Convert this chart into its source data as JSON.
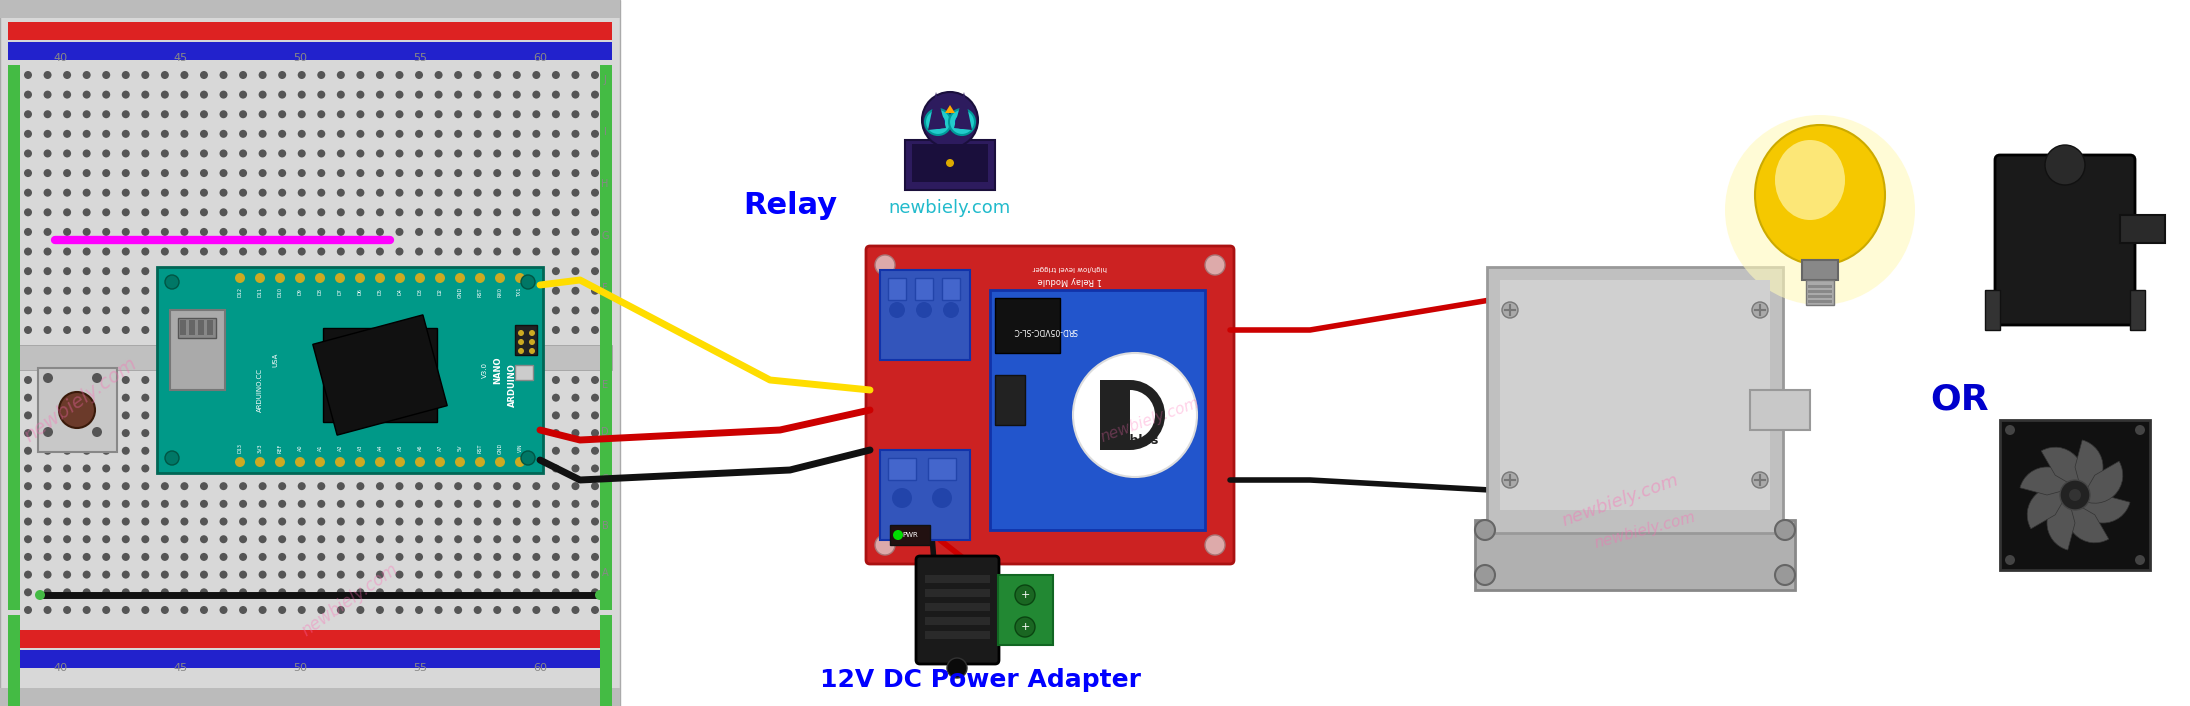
{
  "background_color": "#ffffff",
  "relay_label": "Relay",
  "relay_label_color": "#0000ff",
  "power_label": "12V DC Power Adapter",
  "power_label_color": "#0000ff",
  "or_label": "OR",
  "or_label_color": "#0000cc",
  "newbiely_label": "newbiely.com",
  "newbiely_color": "#22bbcc",
  "watermark_color": "#ff69b4",
  "breadboard_color": "#d8d8d8",
  "breadboard_hole_color": "#555555",
  "breadboard_green_strip": "#44bb44",
  "arduino_teal": "#009988",
  "relay_red": "#cc2222",
  "relay_blue": "#2255cc",
  "wire_yellow": "#ffdd00",
  "wire_red": "#cc0000",
  "wire_black": "#111111",
  "wire_magenta": "#ff00ff",
  "wire_green": "#22aa22"
}
